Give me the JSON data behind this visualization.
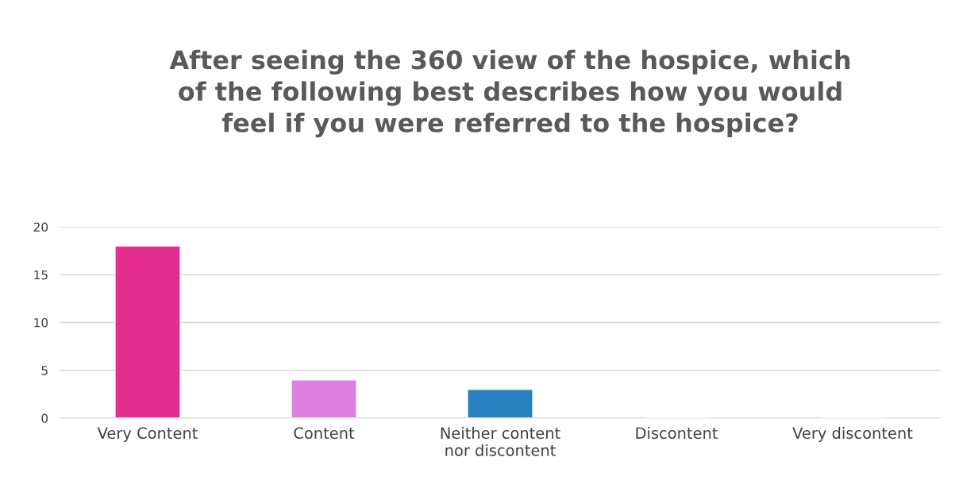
{
  "chart_data": {
    "type": "bar",
    "title": "After seeing the 360 view of the hospice, which\nof the following best describes how you would\nfeel if you were referred to the hospice?",
    "categories": [
      "Very Content",
      "Content",
      "Neither content\nnor discontent",
      "Discontent",
      "Very discontent"
    ],
    "values": [
      18,
      4,
      3,
      0,
      0
    ],
    "colors": [
      "#e32d8f",
      "#df80e0",
      "#2880bf",
      null,
      null
    ],
    "ylim": [
      0,
      20
    ],
    "yticks": [
      0,
      5,
      10,
      15,
      20
    ],
    "grid": "y",
    "legend": false
  }
}
